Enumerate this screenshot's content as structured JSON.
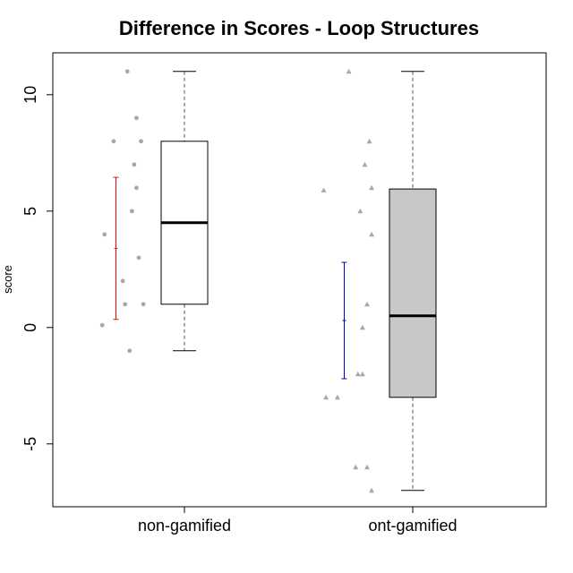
{
  "chart_data": {
    "type": "box",
    "title": "Difference in Scores - Loop Structures",
    "ylabel": "score",
    "xlabel": "",
    "ylim": [
      -7.7,
      11.8
    ],
    "yticks": [
      10,
      5,
      0,
      -5
    ],
    "ytick_labels": [
      "10",
      "5",
      "0",
      "-5"
    ],
    "grid": false,
    "categories": [
      "non-gamified",
      "ont-gamified"
    ],
    "boxes": [
      {
        "name": "non-gamified",
        "whisker_low": -1,
        "q1": 1,
        "median": 4.5,
        "q3": 8,
        "whisker_high": 11,
        "fill": "#ffffff",
        "point_shape": "circle",
        "points": [
          {
            "x": 0.75,
            "y": 11
          },
          {
            "x": 0.79,
            "y": 9
          },
          {
            "x": 0.69,
            "y": 8
          },
          {
            "x": 0.81,
            "y": 8
          },
          {
            "x": 0.78,
            "y": 7
          },
          {
            "x": 0.79,
            "y": 6
          },
          {
            "x": 0.77,
            "y": 5
          },
          {
            "x": 0.65,
            "y": 4
          },
          {
            "x": 0.8,
            "y": 3
          },
          {
            "x": 0.73,
            "y": 2
          },
          {
            "x": 0.74,
            "y": 1
          },
          {
            "x": 0.82,
            "y": 1
          },
          {
            "x": 0.64,
            "y": 0.1
          },
          {
            "x": 0.76,
            "y": -1
          }
        ],
        "mean_bar": {
          "mean": 3.4,
          "low": 0.35,
          "high": 6.45,
          "color": "#ff0000"
        }
      },
      {
        "name": "ont-gamified",
        "whisker_low": -7,
        "q1": -3,
        "median": 0.5,
        "q3": 5.95,
        "whisker_high": 11,
        "fill": "#c8c8c8",
        "point_shape": "triangle",
        "points": [
          {
            "x": 1.72,
            "y": 11
          },
          {
            "x": 1.81,
            "y": 8
          },
          {
            "x": 1.79,
            "y": 7
          },
          {
            "x": 1.82,
            "y": 6
          },
          {
            "x": 1.61,
            "y": 5.9
          },
          {
            "x": 1.77,
            "y": 5
          },
          {
            "x": 1.82,
            "y": 4
          },
          {
            "x": 1.8,
            "y": 1
          },
          {
            "x": 1.78,
            "y": 0
          },
          {
            "x": 1.76,
            "y": -2
          },
          {
            "x": 1.78,
            "y": -2
          },
          {
            "x": 1.62,
            "y": -3
          },
          {
            "x": 1.67,
            "y": -3
          },
          {
            "x": 1.75,
            "y": -6
          },
          {
            "x": 1.8,
            "y": -6
          },
          {
            "x": 1.82,
            "y": -7
          }
        ],
        "mean_bar": {
          "mean": 0.3,
          "low": -2.2,
          "high": 2.8,
          "color": "#0000cc"
        }
      }
    ]
  }
}
